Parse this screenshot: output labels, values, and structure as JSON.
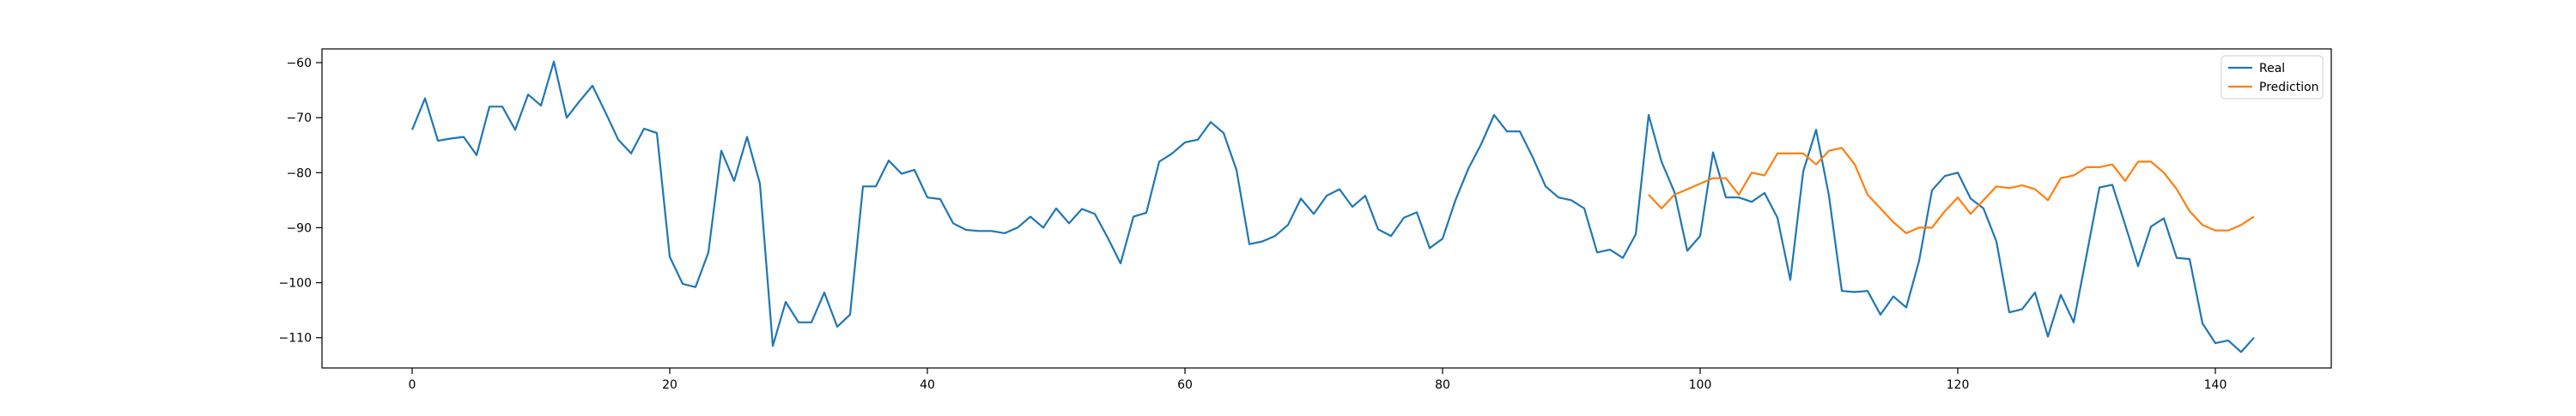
{
  "chart_data": {
    "type": "line",
    "title": "",
    "xlabel": "",
    "ylabel": "",
    "xlim": [
      -7,
      149
    ],
    "ylim": [
      -115.5,
      -57.5
    ],
    "xticks": [
      0,
      20,
      40,
      60,
      80,
      100,
      120,
      140
    ],
    "yticks": [
      -60,
      -70,
      -80,
      -90,
      -100,
      -110
    ],
    "xtick_labels": [
      "0",
      "20",
      "40",
      "60",
      "80",
      "100",
      "120",
      "140"
    ],
    "ytick_labels": [
      "−60",
      "−70",
      "−80",
      "−90",
      "−100",
      "−110"
    ],
    "grid": false,
    "legend_position": "top-right",
    "series": [
      {
        "name": "Real",
        "color": "#1f77b4",
        "x_start": 0,
        "values": [
          -72.2,
          -66.5,
          -74.2,
          -73.8,
          -73.5,
          -76.8,
          -68.0,
          -68.0,
          -72.2,
          -65.8,
          -67.8,
          -59.8,
          -70.0,
          -67.0,
          -64.2,
          -69.0,
          -74.0,
          -76.5,
          -72.0,
          -72.8,
          -95.3,
          -100.2,
          -100.8,
          -94.5,
          -76.0,
          -81.5,
          -73.5,
          -82.0,
          -111.5,
          -103.5,
          -107.2,
          -107.2,
          -101.8,
          -108.0,
          -105.8,
          -82.5,
          -82.5,
          -77.8,
          -80.2,
          -79.5,
          -84.5,
          -84.8,
          -89.2,
          -90.4,
          -90.6,
          -90.6,
          -91.0,
          -90.0,
          -88.0,
          -90.0,
          -86.5,
          -89.2,
          -86.6,
          -87.5,
          -91.8,
          -96.5,
          -88.0,
          -87.3,
          -78.0,
          -76.5,
          -74.5,
          -74.0,
          -70.8,
          -72.8,
          -79.5,
          -93.0,
          -92.5,
          -91.5,
          -89.5,
          -84.7,
          -87.5,
          -84.2,
          -83.0,
          -86.2,
          -84.2,
          -90.3,
          -91.5,
          -88.2,
          -87.2,
          -93.7,
          -92.0,
          -85.0,
          -79.3,
          -74.8,
          -69.5,
          -72.5,
          -72.5,
          -77.2,
          -82.5,
          -84.5,
          -85.0,
          -86.5,
          -94.5,
          -94.0,
          -95.5,
          -91.2,
          -69.5,
          -78.0,
          -83.5,
          -94.2,
          -91.5,
          -76.3,
          -84.5,
          -84.5,
          -85.3,
          -83.7,
          -88.2,
          -99.5,
          -79.8,
          -72.2,
          -84.2,
          -101.5,
          -101.7,
          -101.5,
          -105.8,
          -102.5,
          -104.5,
          -96.0,
          -83.2,
          -80.6,
          -80.0,
          -84.7,
          -86.5,
          -92.5,
          -105.4,
          -104.8,
          -101.8,
          -109.8,
          -102.2,
          -107.2,
          -95.0,
          -82.7,
          -82.2,
          -89.5,
          -97.0,
          -89.8,
          -88.3,
          -95.5,
          -95.7,
          -107.4,
          -111.0,
          -110.5,
          -112.6,
          -110.0
        ]
      },
      {
        "name": "Prediction",
        "color": "#ff7f0e",
        "x_start": 96,
        "values": [
          -84.0,
          -86.5,
          -84.0,
          -83.0,
          -82.0,
          -81.0,
          -81.0,
          -84.0,
          -80.0,
          -80.5,
          -76.5,
          -76.5,
          -76.5,
          -78.5,
          -76.0,
          -75.5,
          -78.5,
          -84.0,
          -86.5,
          -89.0,
          -91.0,
          -90.0,
          -90.0,
          -87.0,
          -84.5,
          -87.5,
          -85.0,
          -82.5,
          -82.8,
          -82.3,
          -83.0,
          -85.0,
          -81.0,
          -80.5,
          -79.0,
          -79.0,
          -78.5,
          -81.5,
          -78.0,
          -78.0,
          -80.0,
          -83.0,
          -87.0,
          -89.5,
          -90.5,
          -90.5,
          -89.5,
          -88.0
        ]
      }
    ]
  }
}
